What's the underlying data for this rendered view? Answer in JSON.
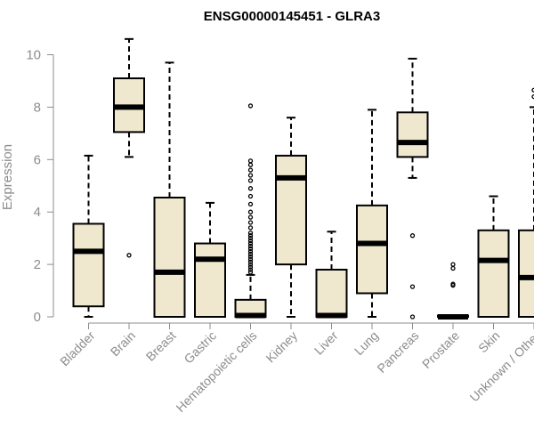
{
  "chart_data": {
    "type": "boxplot",
    "title": "ENSG00000145451 - GLRA3",
    "xlabel": "",
    "ylabel": "Expression",
    "ylim": [
      0,
      10.8
    ],
    "yticks": [
      0,
      2,
      4,
      6,
      8,
      10
    ],
    "box_color": "#efe8cf",
    "categories": [
      "Bladder",
      "Brain",
      "Breast",
      "Gastric",
      "Hematopoietic cells",
      "Kidney",
      "Liver",
      "Lung",
      "Pancreas",
      "Prostate",
      "Skin",
      "Unknown / Other"
    ],
    "boxes": [
      {
        "min": 0.0,
        "q1": 0.4,
        "median": 2.5,
        "q3": 3.55,
        "max": 6.15,
        "outliers": []
      },
      {
        "min": 6.1,
        "q1": 7.05,
        "median": 8.0,
        "q3": 9.1,
        "max": 10.6,
        "outliers": [
          2.35
        ]
      },
      {
        "min": 0.0,
        "q1": 0.0,
        "median": 1.7,
        "q3": 4.55,
        "max": 9.7,
        "outliers": []
      },
      {
        "min": 0.0,
        "q1": 0.0,
        "median": 2.2,
        "q3": 2.8,
        "max": 4.35,
        "outliers": []
      },
      {
        "min": 0.0,
        "q1": 0.0,
        "median": 0.05,
        "q3": 0.65,
        "max": 1.6,
        "outliers": [
          1.7,
          1.8,
          1.9,
          2.0,
          2.1,
          2.2,
          2.3,
          2.4,
          2.5,
          2.6,
          2.7,
          2.8,
          2.9,
          3.0,
          3.1,
          3.2,
          3.4,
          3.6,
          3.8,
          4.0,
          4.3,
          4.6,
          4.9,
          5.2,
          5.4,
          5.6,
          5.8,
          5.95,
          8.05
        ]
      },
      {
        "min": 0.0,
        "q1": 2.0,
        "median": 5.3,
        "q3": 6.15,
        "max": 7.6,
        "outliers": []
      },
      {
        "min": 0.0,
        "q1": 0.0,
        "median": 0.05,
        "q3": 1.8,
        "max": 3.25,
        "outliers": []
      },
      {
        "min": 0.0,
        "q1": 0.9,
        "median": 2.8,
        "q3": 4.25,
        "max": 7.9,
        "outliers": []
      },
      {
        "min": 5.3,
        "q1": 6.1,
        "median": 6.65,
        "q3": 7.8,
        "max": 9.85,
        "outliers": [
          3.1,
          1.15,
          0.0
        ]
      },
      {
        "min": 0.0,
        "q1": 0.0,
        "median": 0.0,
        "q3": 0.05,
        "max": 0.05,
        "outliers": [
          1.2,
          1.25,
          1.85,
          2.0
        ]
      },
      {
        "min": 0.0,
        "q1": 0.0,
        "median": 2.15,
        "q3": 3.3,
        "max": 4.6,
        "outliers": []
      },
      {
        "min": 0.0,
        "q1": 0.0,
        "median": 1.5,
        "q3": 3.3,
        "max": 8.0,
        "outliers": [
          8.4,
          8.65
        ]
      }
    ]
  }
}
